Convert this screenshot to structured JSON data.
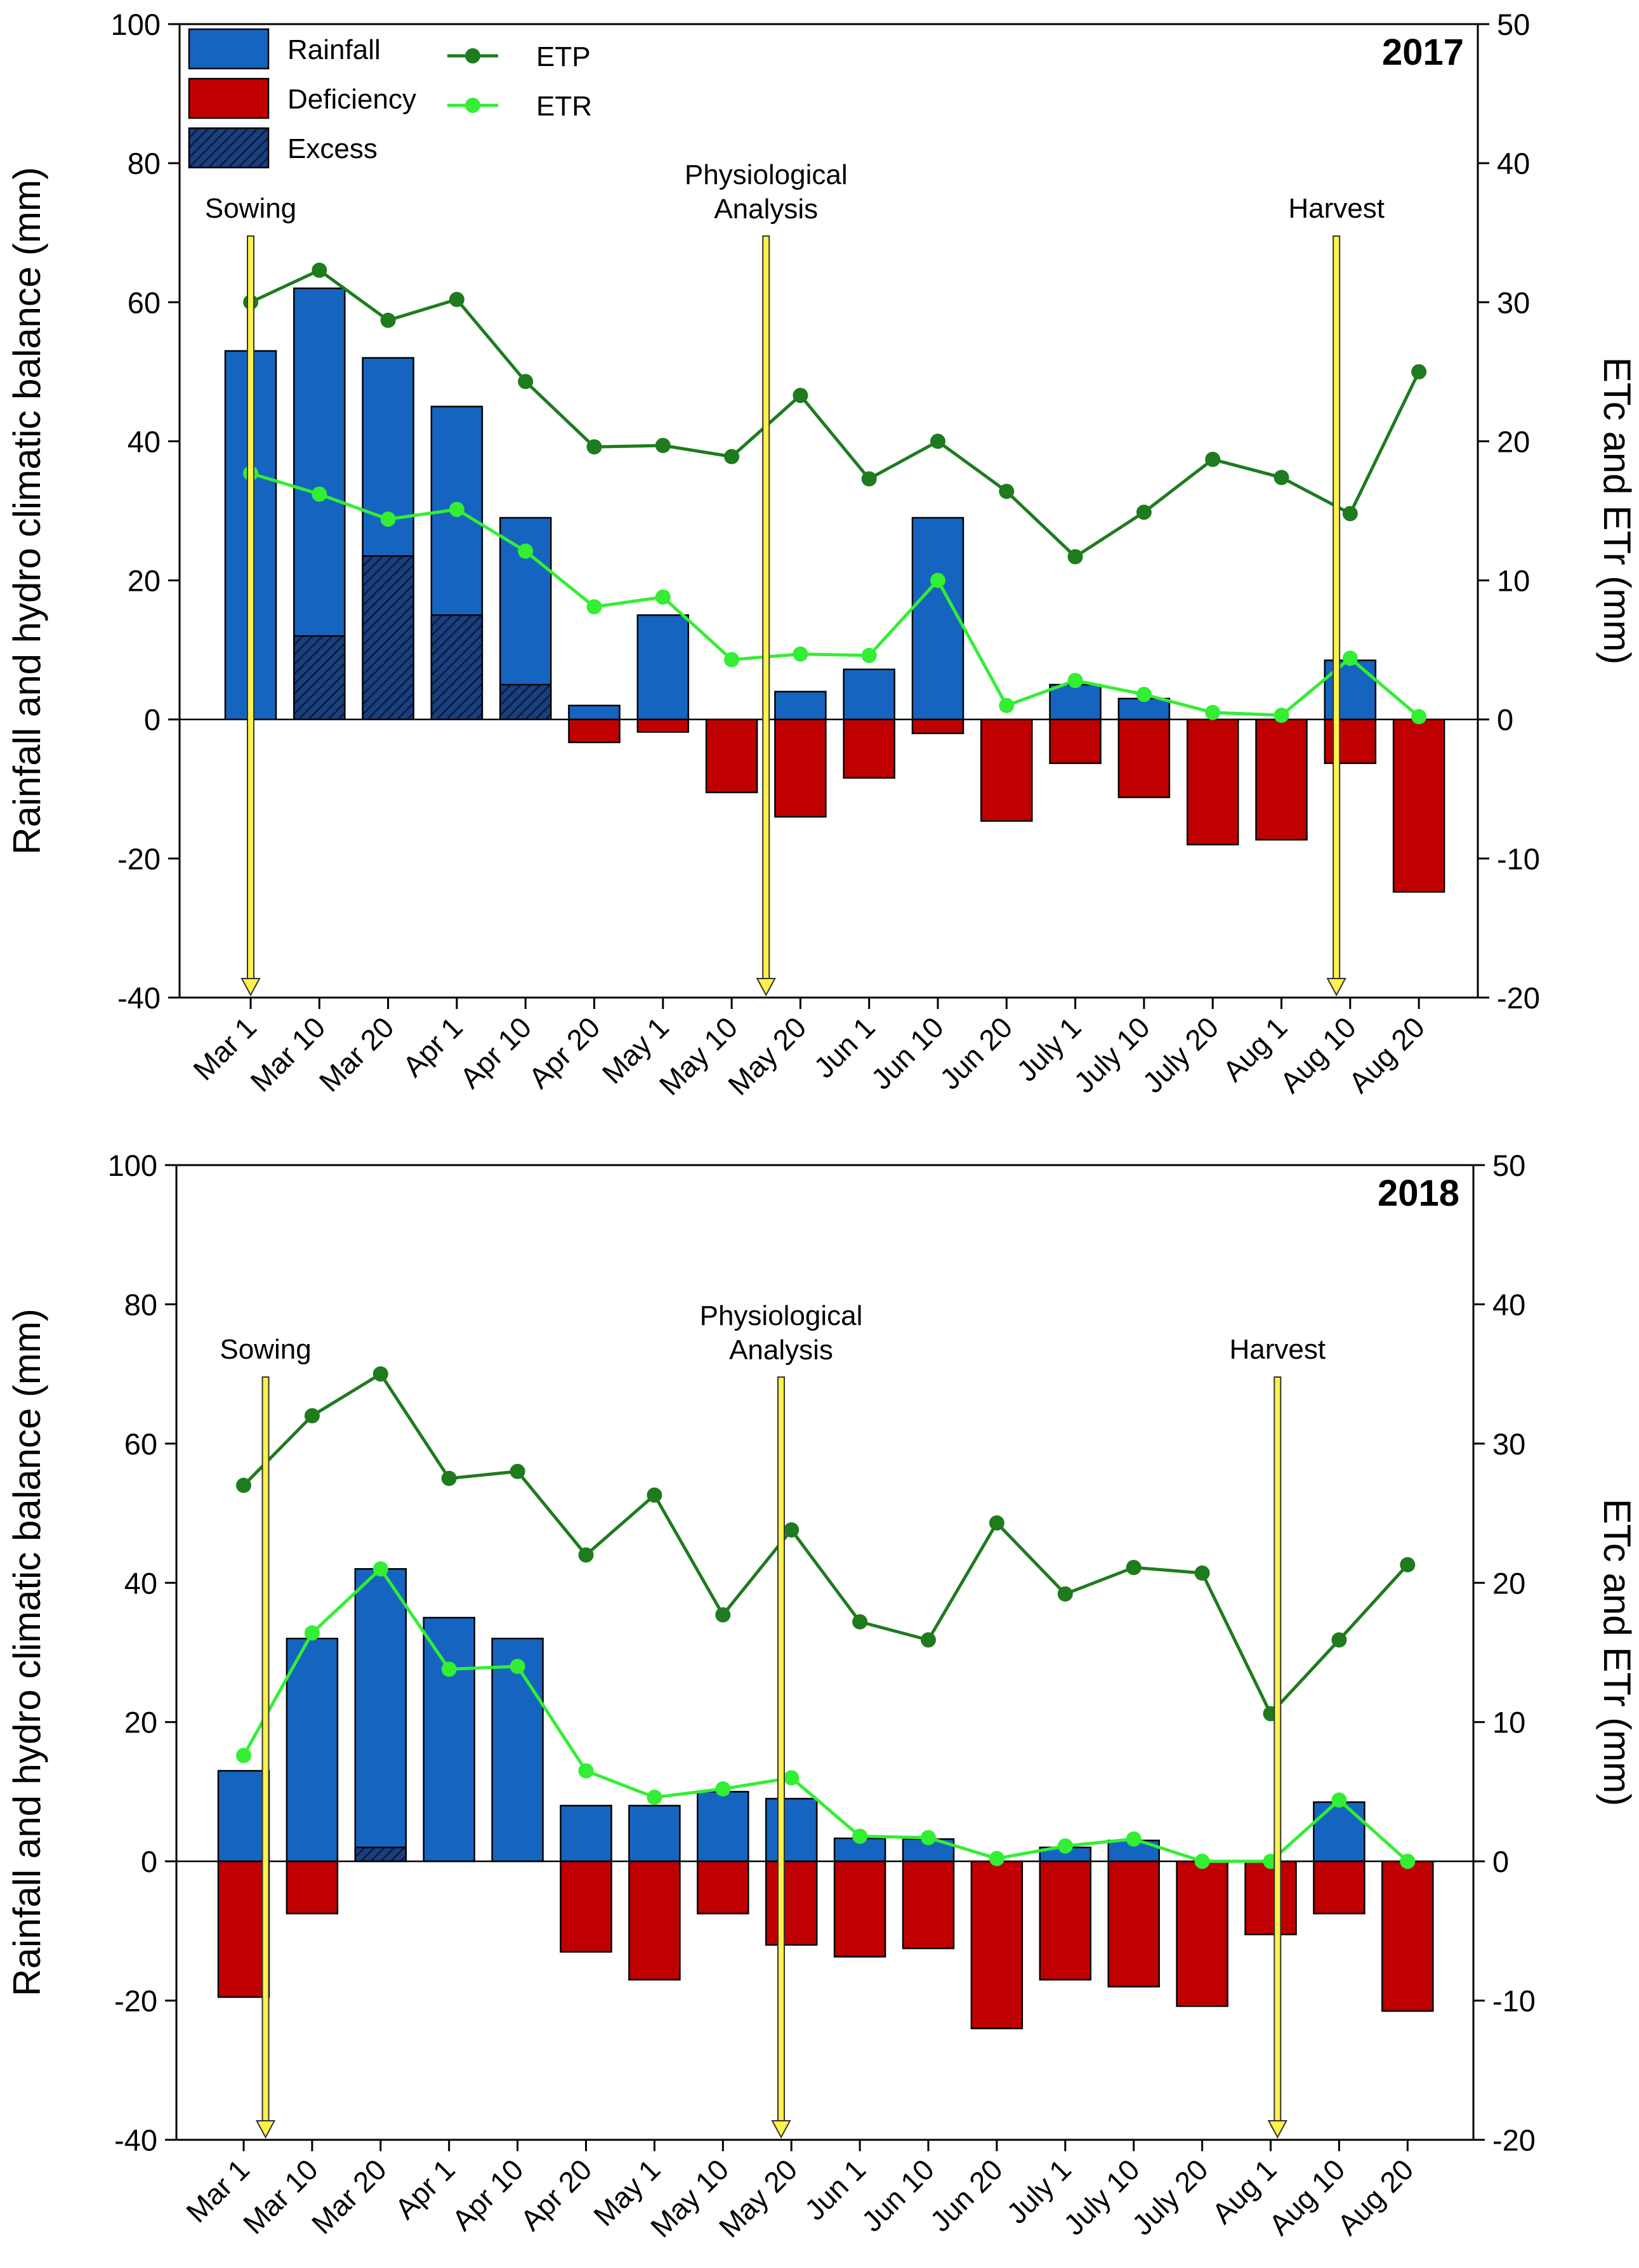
{
  "chart_data": [
    {
      "type": "bar+line",
      "title": "2017",
      "ylabel": "Rainfall and hydro climatic balance (mm)",
      "y2label": "ETc and ETr (mm)",
      "ylim": [
        -40,
        100
      ],
      "y2lim": [
        -20,
        50
      ],
      "yticks": [
        "-40",
        "-20",
        "0",
        "20",
        "40",
        "60",
        "80",
        "100"
      ],
      "y2ticks": [
        "-20",
        "-10",
        "0",
        "10",
        "20",
        "30",
        "40",
        "50"
      ],
      "categories": [
        "Mar 1",
        "Mar 10",
        "Mar 20",
        "Apr 1",
        "Apr 10",
        "Apr 20",
        "May 1",
        "May 10",
        "May 20",
        "Jun 1",
        "Jun 10",
        "Jun 20",
        "July 1",
        "July 10",
        "July 20",
        "Aug 1",
        "Aug 10",
        "Aug 20"
      ],
      "series": [
        {
          "name": "Rainfall",
          "kind": "bar",
          "color": "#1565C0",
          "values": [
            53,
            62,
            52,
            45,
            29,
            2,
            15,
            0,
            4,
            7.2,
            29,
            0,
            5,
            3,
            0,
            0,
            8.5,
            0
          ]
        },
        {
          "name": "Deficiency",
          "kind": "bar",
          "color": "#C00000",
          "values": [
            0,
            0,
            0,
            0,
            0,
            -3.3,
            -1.8,
            -10.5,
            -14,
            -8.4,
            -2,
            -14.6,
            -6.3,
            -11.2,
            -18,
            -17.3,
            -6.3,
            -24.8
          ]
        },
        {
          "name": "Excess",
          "kind": "hatched-bar",
          "color": "#1A3F7F",
          "values": [
            0,
            12,
            23.5,
            15,
            5,
            0,
            0,
            0,
            0,
            0,
            0,
            0,
            0,
            0,
            0,
            0,
            0,
            0
          ]
        },
        {
          "name": "ETP",
          "kind": "line",
          "axis": "right",
          "color": "#1E7B1E",
          "values": [
            30,
            32.3,
            28.7,
            30.2,
            24.3,
            19.6,
            19.7,
            18.9,
            23.3,
            17.3,
            20,
            16.4,
            11.7,
            14.9,
            18.7,
            17.4,
            14.8,
            25
          ]
        },
        {
          "name": "ETR",
          "kind": "line",
          "axis": "right",
          "color": "#33EE33",
          "values": [
            17.7,
            16.2,
            14.4,
            15.1,
            12.1,
            8.1,
            8.8,
            4.3,
            4.7,
            4.6,
            10,
            1,
            2.8,
            1.8,
            0.5,
            0.3,
            4.4,
            0.2
          ]
        }
      ],
      "legend": {
        "labels": [
          "Rainfall",
          "Deficiency",
          "Excess",
          "ETP",
          "ETR"
        ],
        "placement": "top-left"
      },
      "annotations": [
        {
          "text": [
            "Sowing"
          ],
          "category_index": 0
        },
        {
          "text": [
            "Physiological",
            "Analysis"
          ],
          "category_index": 7.5
        },
        {
          "text": [
            "Harvest"
          ],
          "category_index": 15.8
        }
      ]
    },
    {
      "type": "bar+line",
      "title": "2018",
      "ylabel": "Rainfall and hydro climatic balance (mm)",
      "y2label": "ETc and ETr (mm)",
      "ylim": [
        -40,
        100
      ],
      "y2lim": [
        -20,
        50
      ],
      "yticks": [
        "-40",
        "-20",
        "0",
        "20",
        "40",
        "60",
        "80",
        "100"
      ],
      "y2ticks": [
        "-20",
        "-10",
        "0",
        "10",
        "20",
        "30",
        "40",
        "50"
      ],
      "categories": [
        "Mar 1",
        "Mar 10",
        "Mar 20",
        "Apr 1",
        "Apr 10",
        "Apr 20",
        "May 1",
        "May 10",
        "May 20",
        "Jun 1",
        "Jun 10",
        "Jun 20",
        "July 1",
        "July 10",
        "July 20",
        "Aug 1",
        "Aug 10",
        "Aug 20"
      ],
      "series": [
        {
          "name": "Rainfall",
          "kind": "bar",
          "color": "#1565C0",
          "values": [
            13,
            32,
            42,
            35,
            32,
            8,
            8,
            10,
            9,
            3.3,
            3.2,
            0,
            2,
            3,
            0,
            0,
            8.5,
            0
          ]
        },
        {
          "name": "Deficiency",
          "kind": "bar",
          "color": "#C00000",
          "values": [
            -19.5,
            -7.5,
            0,
            0,
            0,
            -13,
            -17,
            -7.5,
            -12,
            -13.7,
            -12.5,
            -24,
            -17,
            -18,
            -20.8,
            -10.5,
            -7.5,
            -21.5
          ]
        },
        {
          "name": "Excess",
          "kind": "hatched-bar",
          "color": "#1A3F7F",
          "values": [
            0,
            0,
            2,
            0,
            0,
            0,
            0,
            0,
            0,
            0,
            0,
            0,
            0,
            0,
            0,
            0,
            0,
            0
          ]
        },
        {
          "name": "ETP",
          "kind": "line",
          "axis": "right",
          "color": "#1E7B1E",
          "values": [
            27,
            32,
            35,
            27.5,
            28,
            22,
            26.3,
            17.7,
            23.8,
            17.2,
            15.9,
            24.3,
            19.2,
            21.1,
            20.7,
            10.6,
            15.9,
            21.3
          ]
        },
        {
          "name": "ETR",
          "kind": "line",
          "axis": "right",
          "color": "#33EE33",
          "values": [
            7.6,
            16.4,
            21,
            13.8,
            14,
            6.5,
            4.6,
            5.2,
            6,
            1.8,
            1.7,
            0.2,
            1.1,
            1.6,
            0,
            0,
            4.4,
            0
          ]
        }
      ],
      "legend": null,
      "annotations": [
        {
          "text": [
            "Sowing"
          ],
          "category_index": 0.32
        },
        {
          "text": [
            "Physiological",
            "Analysis"
          ],
          "category_index": 7.85
        },
        {
          "text": [
            "Harvest"
          ],
          "category_index": 15.1
        }
      ]
    }
  ]
}
